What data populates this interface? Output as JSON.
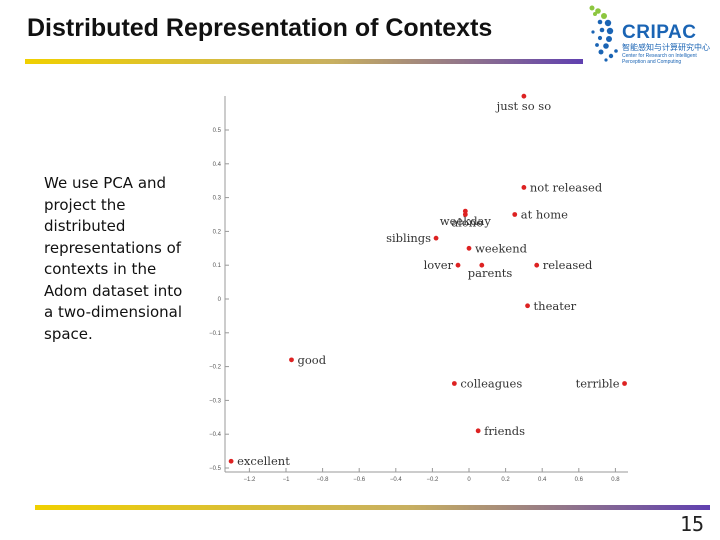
{
  "slide": {
    "title": "Distributed Representation of Contexts",
    "body": "We use PCA and project the distributed representations of contexts in the Adom dataset into a two-dimensional space.",
    "page_number": "15"
  },
  "logo": {
    "name": "CRIPAC",
    "subtitle_cn": "智能感知与计算研究中心",
    "subtitle_en_1": "Center for Research on Intelligent",
    "subtitle_en_2": "Perception and Computing"
  },
  "colors": {
    "accent_start": "#f0d000",
    "accent_end": "#6040b0",
    "point": "#dd2222",
    "logo_blue": "#1a64b4",
    "logo_green": "#8cc63f"
  },
  "chart_data": {
    "type": "scatter",
    "title": "",
    "xlabel": "",
    "ylabel": "",
    "xlim": [
      -1.35,
      0.85
    ],
    "ylim": [
      -0.5,
      0.58
    ],
    "xticks": [
      -1.2,
      -1,
      -0.8,
      -0.6,
      -0.4,
      -0.2,
      0,
      0.2,
      0.4,
      0.6,
      0.8
    ],
    "xtick_labels": [
      "−1.2",
      "−1",
      "−0.8",
      "−0.6",
      "−0.4",
      "−0.2",
      "0",
      "0.2",
      "0.4",
      "0.6",
      "0.8"
    ],
    "yticks": [
      0.5,
      0.4,
      0.3,
      0.2,
      0.1,
      0,
      -0.1,
      -0.2,
      -0.3,
      -0.4,
      -0.5
    ],
    "ytick_labels": [
      "0.5",
      "0.4",
      "0.3",
      "0.2",
      "0.1",
      "0",
      "−0.1",
      "−0.2",
      "−0.3",
      "−0.4",
      "−0.5"
    ],
    "points": [
      {
        "label": "just so so",
        "x": 0.3,
        "y": 0.6,
        "anchor": "above"
      },
      {
        "label": "not released",
        "x": 0.3,
        "y": 0.33,
        "anchor": "right"
      },
      {
        "label": "weekday",
        "x": -0.02,
        "y": 0.26,
        "anchor": "above"
      },
      {
        "label": "at home",
        "x": 0.25,
        "y": 0.25,
        "anchor": "right"
      },
      {
        "label": "alone",
        "x": -0.02,
        "y": 0.25,
        "anchor": "below"
      },
      {
        "label": "siblings",
        "x": -0.18,
        "y": 0.18,
        "anchor": "left"
      },
      {
        "label": "weekend",
        "x": 0.0,
        "y": 0.15,
        "anchor": "right"
      },
      {
        "label": "lover",
        "x": -0.06,
        "y": 0.1,
        "anchor": "left"
      },
      {
        "label": "parents",
        "x": 0.07,
        "y": 0.1,
        "anchor": "below"
      },
      {
        "label": "released",
        "x": 0.37,
        "y": 0.1,
        "anchor": "right"
      },
      {
        "label": "theater",
        "x": 0.32,
        "y": -0.02,
        "anchor": "right"
      },
      {
        "label": "good",
        "x": -0.97,
        "y": -0.18,
        "anchor": "right"
      },
      {
        "label": "colleagues",
        "x": -0.08,
        "y": -0.25,
        "anchor": "right"
      },
      {
        "label": "terrible",
        "x": 0.85,
        "y": -0.25,
        "anchor": "left"
      },
      {
        "label": "friends",
        "x": 0.05,
        "y": -0.39,
        "anchor": "right"
      },
      {
        "label": "excellent",
        "x": -1.3,
        "y": -0.48,
        "anchor": "right"
      }
    ]
  }
}
